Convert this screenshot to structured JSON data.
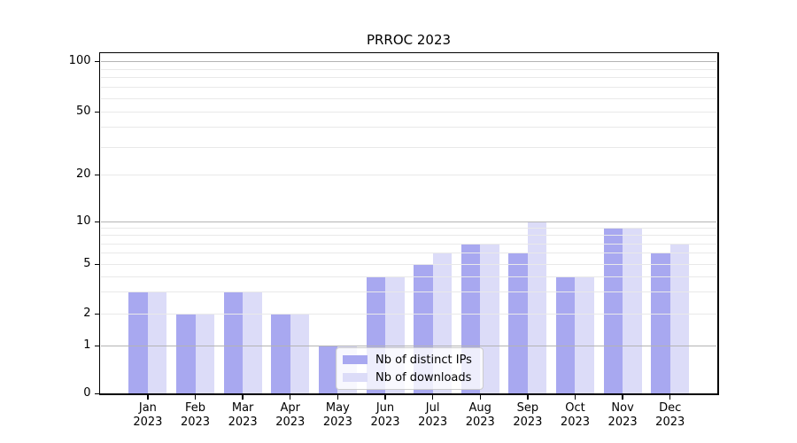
{
  "title": "PRROC 2023",
  "chart_data": {
    "type": "bar",
    "title": "PRROC 2023",
    "categories": [
      "Jan 2023",
      "Feb 2023",
      "Mar 2023",
      "Apr 2023",
      "May 2023",
      "Jun 2023",
      "Jul 2023",
      "Aug 2023",
      "Sep 2023",
      "Oct 2023",
      "Nov 2023",
      "Dec 2023"
    ],
    "category_line1": [
      "Jan",
      "Feb",
      "Mar",
      "Apr",
      "May",
      "Jun",
      "Jul",
      "Aug",
      "Sep",
      "Oct",
      "Nov",
      "Dec"
    ],
    "category_line2": [
      "2023",
      "2023",
      "2023",
      "2023",
      "2023",
      "2023",
      "2023",
      "2023",
      "2023",
      "2023",
      "2023",
      "2023"
    ],
    "series": [
      {
        "name": "Nb of distinct IPs",
        "color": "#a8a8f0",
        "values": [
          3,
          2,
          3,
          2,
          1,
          4,
          5,
          7,
          6,
          4,
          9,
          6
        ]
      },
      {
        "name": "Nb of downloads",
        "color": "#dcdcf8",
        "values": [
          3,
          2,
          3,
          2,
          1,
          4,
          6,
          7,
          10,
          4,
          9,
          7
        ]
      }
    ],
    "yscale": "log-like (0,1,2,5,10,20,50,100)",
    "ytick_labels": [
      "0",
      "1",
      "2",
      "5",
      "10",
      "20",
      "50",
      "100"
    ],
    "ytick_values": [
      0,
      1,
      2,
      5,
      10,
      20,
      50,
      100
    ],
    "ylim": [
      0,
      100
    ],
    "grid": "horizontal, major grey at 1/10/100, faint minor log lines, drawn over bars",
    "legend_position": "lower center inside plot",
    "colors": {
      "bar_dark": "#a8a8f0",
      "bar_light": "#dcdcf8",
      "major_gridline": "#b4b4b4",
      "minor_gridline": "#e9e9e9",
      "spine": "#000000",
      "text": "#000000",
      "legend_border": "#cccccc"
    }
  },
  "legend": {
    "items": [
      {
        "label": "Nb of distinct IPs",
        "color": "#a8a8f0"
      },
      {
        "label": "Nb of downloads",
        "color": "#dcdcf8"
      }
    ]
  }
}
